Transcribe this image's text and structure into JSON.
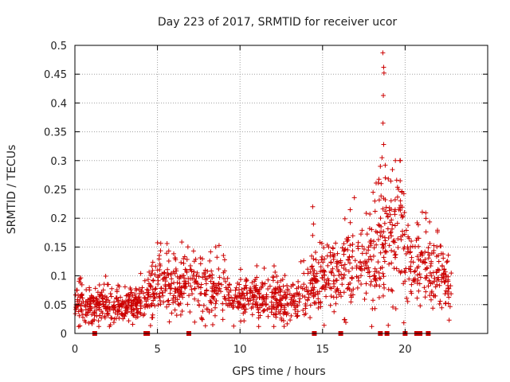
{
  "chart_data": {
    "type": "scatter",
    "title": "Day 223 of 2017, SRMTID for receiver ucor",
    "xlabel": "GPS time / hours",
    "ylabel": "SRMTID / TECUs",
    "xlim": [
      0,
      25
    ],
    "ylim": [
      0,
      0.5
    ],
    "x_ticks": [
      0,
      5,
      10,
      15,
      20
    ],
    "x_tick_labels": [
      "0",
      "5",
      "10",
      "15",
      "20"
    ],
    "y_ticks": [
      0,
      0.05,
      0.1,
      0.15,
      0.2,
      0.25,
      0.3,
      0.35,
      0.4,
      0.45,
      0.5
    ],
    "y_tick_labels": [
      "0",
      "0.05",
      "0.1",
      "0.15",
      "0.2",
      "0.25",
      "0.3",
      "0.35",
      "0.4",
      "0.45",
      "0.5"
    ],
    "grid": true,
    "marker": "+",
    "color": "#cc0000",
    "series_profile": [
      {
        "x": 0.0,
        "y": 0.055
      },
      {
        "x": 0.5,
        "y": 0.05
      },
      {
        "x": 1.0,
        "y": 0.045
      },
      {
        "x": 1.5,
        "y": 0.05
      },
      {
        "x": 2.0,
        "y": 0.055
      },
      {
        "x": 2.5,
        "y": 0.045
      },
      {
        "x": 3.0,
        "y": 0.045
      },
      {
        "x": 3.5,
        "y": 0.05
      },
      {
        "x": 4.0,
        "y": 0.055
      },
      {
        "x": 4.5,
        "y": 0.07
      },
      {
        "x": 5.0,
        "y": 0.085
      },
      {
        "x": 5.5,
        "y": 0.08
      },
      {
        "x": 6.0,
        "y": 0.08
      },
      {
        "x": 6.5,
        "y": 0.085
      },
      {
        "x": 7.0,
        "y": 0.09
      },
      {
        "x": 7.5,
        "y": 0.075
      },
      {
        "x": 8.0,
        "y": 0.075
      },
      {
        "x": 8.5,
        "y": 0.08
      },
      {
        "x": 9.0,
        "y": 0.075
      },
      {
        "x": 9.5,
        "y": 0.065
      },
      {
        "x": 10.0,
        "y": 0.06
      },
      {
        "x": 10.5,
        "y": 0.06
      },
      {
        "x": 11.0,
        "y": 0.065
      },
      {
        "x": 11.5,
        "y": 0.06
      },
      {
        "x": 12.0,
        "y": 0.06
      },
      {
        "x": 12.5,
        "y": 0.055
      },
      {
        "x": 13.0,
        "y": 0.06
      },
      {
        "x": 13.5,
        "y": 0.065
      },
      {
        "x": 14.0,
        "y": 0.07
      },
      {
        "x": 14.5,
        "y": 0.09
      },
      {
        "x": 15.0,
        "y": 0.1
      },
      {
        "x": 15.5,
        "y": 0.095
      },
      {
        "x": 16.0,
        "y": 0.1
      },
      {
        "x": 16.5,
        "y": 0.11
      },
      {
        "x": 17.0,
        "y": 0.11
      },
      {
        "x": 17.5,
        "y": 0.12
      },
      {
        "x": 18.0,
        "y": 0.14
      },
      {
        "x": 18.5,
        "y": 0.15
      },
      {
        "x": 19.0,
        "y": 0.16
      },
      {
        "x": 19.5,
        "y": 0.19
      },
      {
        "x": 20.0,
        "y": 0.15
      },
      {
        "x": 20.5,
        "y": 0.12
      },
      {
        "x": 21.0,
        "y": 0.12
      },
      {
        "x": 21.5,
        "y": 0.11
      },
      {
        "x": 22.0,
        "y": 0.1
      },
      {
        "x": 22.5,
        "y": 0.085
      },
      {
        "x": 22.8,
        "y": 0.07
      }
    ],
    "spike_points": [
      {
        "x": 14.4,
        "y": 0.22
      },
      {
        "x": 14.45,
        "y": 0.19
      },
      {
        "x": 14.4,
        "y": 0.17
      },
      {
        "x": 18.65,
        "y": 0.487
      },
      {
        "x": 18.7,
        "y": 0.462
      },
      {
        "x": 18.72,
        "y": 0.452
      },
      {
        "x": 18.68,
        "y": 0.413
      },
      {
        "x": 18.66,
        "y": 0.365
      },
      {
        "x": 18.7,
        "y": 0.328
      },
      {
        "x": 18.6,
        "y": 0.305
      },
      {
        "x": 18.5,
        "y": 0.29
      },
      {
        "x": 18.55,
        "y": 0.26
      },
      {
        "x": 18.8,
        "y": 0.27
      },
      {
        "x": 19.7,
        "y": 0.265
      },
      {
        "x": 19.6,
        "y": 0.25
      },
      {
        "x": 19.8,
        "y": 0.245
      }
    ],
    "flag_markers_x": [
      1.2,
      4.3,
      4.4,
      6.9,
      14.5,
      16.1,
      18.5,
      18.9,
      20.0,
      20.7,
      20.9,
      21.4
    ],
    "flag_y": 0
  }
}
